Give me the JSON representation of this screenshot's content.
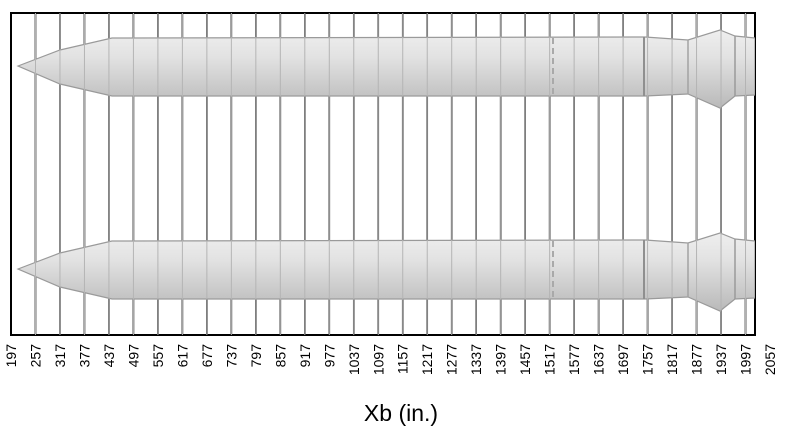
{
  "diagram": {
    "axis_title": "Xb (in.)",
    "station_ticks": [
      "197",
      "257",
      "317",
      "377",
      "437",
      "497",
      "557",
      "617",
      "677",
      "737",
      "797",
      "857",
      "917",
      "977",
      "1037",
      "1097",
      "1157",
      "1217",
      "1277",
      "1337",
      "1397",
      "1457",
      "1517",
      "1577",
      "1637",
      "1697",
      "1757",
      "1817",
      "1877",
      "1937",
      "1997",
      "2057"
    ],
    "colors": {
      "grid": "#000000",
      "background": "#ffffff",
      "booster_fill": "#d4d4d4",
      "booster_edge": "#9a9a9a",
      "booster_highlight": "#e9e9e9"
    },
    "boosters": [
      "upper-booster",
      "lower-booster"
    ]
  }
}
